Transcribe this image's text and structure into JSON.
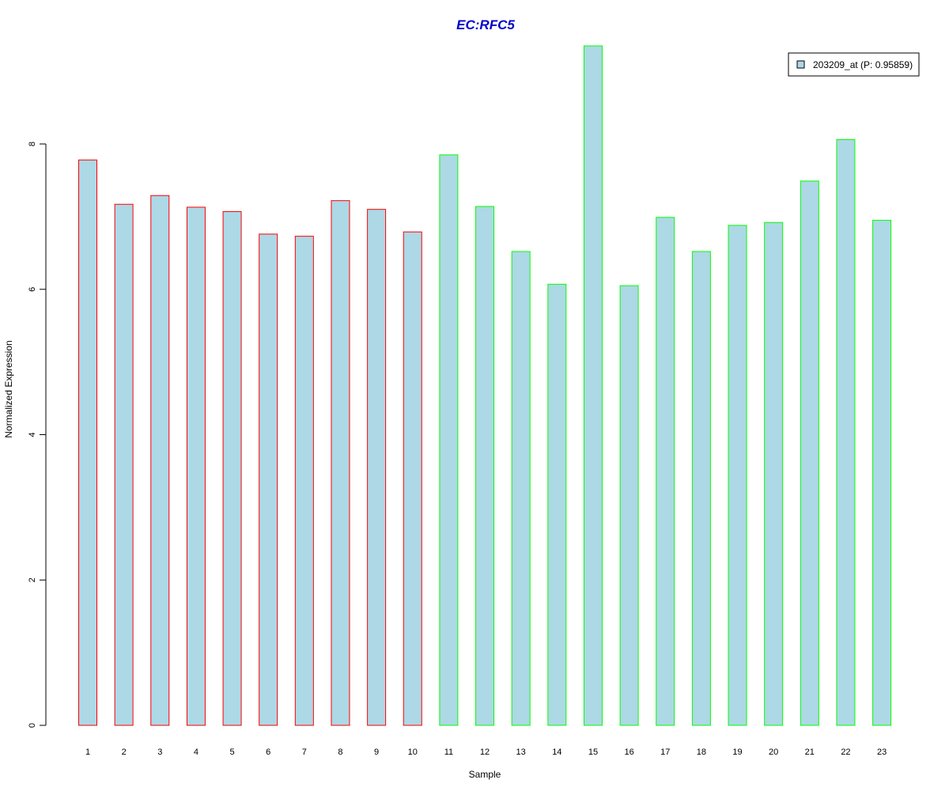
{
  "chart_data": {
    "type": "bar",
    "title": "EC:RFC5",
    "xlabel": "Sample",
    "ylabel": "Normalized Expression",
    "categories": [
      "1",
      "2",
      "3",
      "4",
      "5",
      "6",
      "7",
      "8",
      "9",
      "10",
      "11",
      "12",
      "13",
      "14",
      "15",
      "16",
      "17",
      "18",
      "19",
      "20",
      "21",
      "22",
      "23"
    ],
    "series": [
      {
        "name": "203209_at (P: 0.95859)",
        "values": [
          7.78,
          7.17,
          7.29,
          7.13,
          7.07,
          6.76,
          6.73,
          7.22,
          7.1,
          6.79,
          7.85,
          7.14,
          6.52,
          6.07,
          9.35,
          6.05,
          6.99,
          6.52,
          6.88,
          6.92,
          7.49,
          8.06,
          6.95
        ]
      }
    ],
    "groups": [
      {
        "samples": [
          1,
          2,
          3,
          4,
          5,
          6,
          7,
          8,
          9,
          10
        ],
        "border_color": "#ff0000"
      },
      {
        "samples": [
          11,
          12,
          13,
          14,
          15,
          16,
          17,
          18,
          19,
          20,
          21,
          22,
          23
        ],
        "border_color": "#00ff00"
      }
    ],
    "yticks": [
      0,
      2,
      4,
      6,
      8
    ],
    "ylim": [
      0,
      9.4
    ],
    "grid": false,
    "legend_position": "top-right"
  },
  "colors": {
    "bar_fill": "#add8e6",
    "title": "#0000cc",
    "axis": "#000000"
  }
}
